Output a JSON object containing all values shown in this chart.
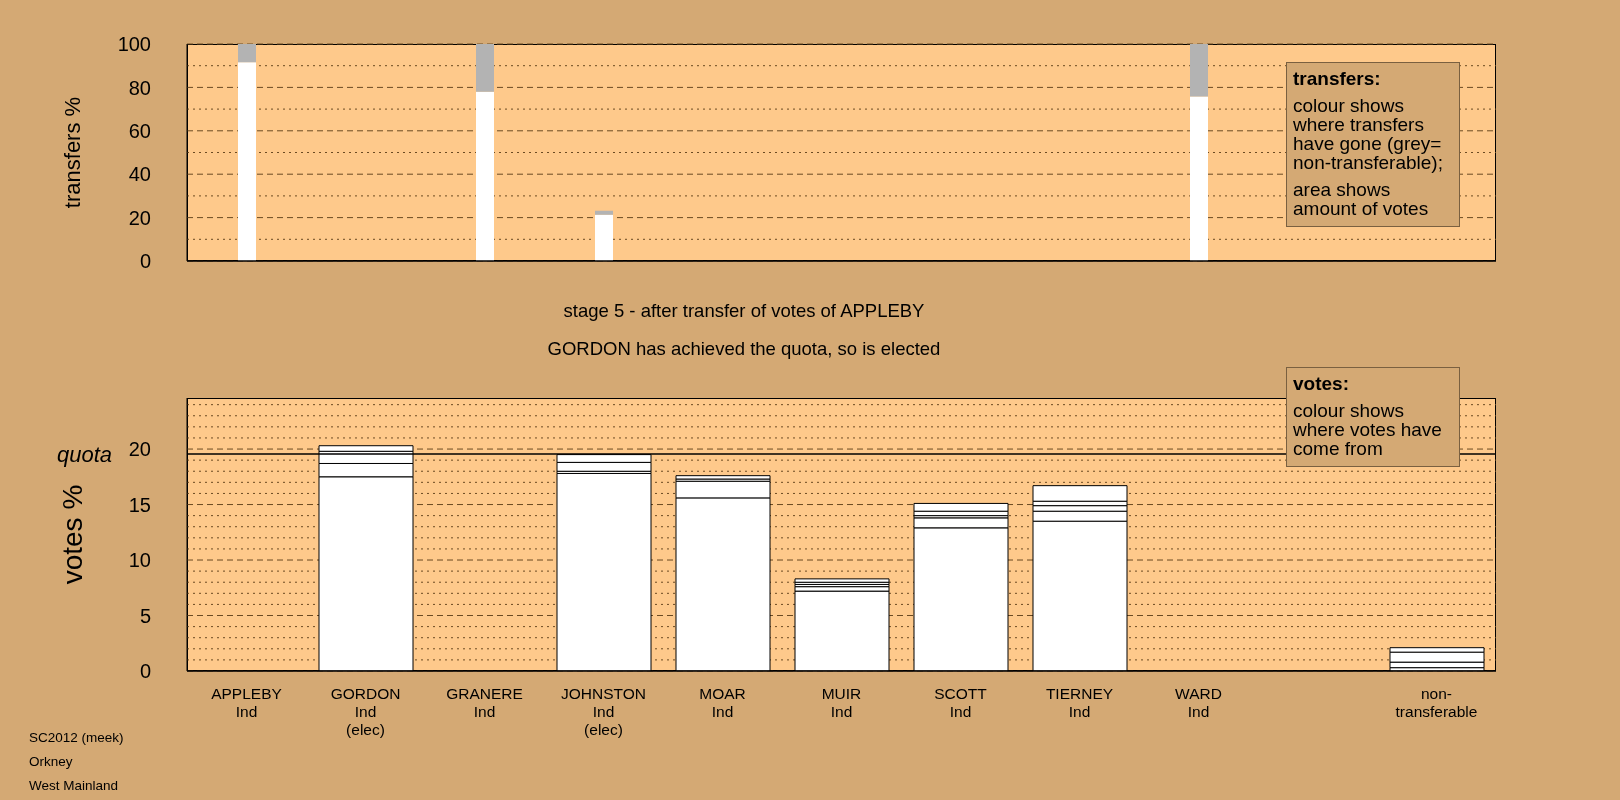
{
  "chart_data": [
    {
      "type": "bar",
      "stacked": true,
      "ylabel": "transfers %",
      "categories": [
        null,
        null,
        null,
        null,
        null,
        null,
        null,
        null,
        null,
        null,
        null
      ],
      "series": [
        {
          "color": "#ffffff",
          "values": [
            91.6,
            null,
            78,
            21.3,
            null,
            null,
            null,
            null,
            75.8,
            null,
            null
          ]
        },
        {
          "color": "#b3b3b3",
          "values": [
            8.4,
            null,
            22,
            1.9,
            null,
            null,
            null,
            null,
            24.2,
            null,
            null
          ]
        }
      ],
      "ylim": [
        0,
        100
      ],
      "yticks": [
        0,
        {
          "value": 10,
          "label": null
        },
        20,
        {
          "value": 30,
          "label": null
        },
        40,
        {
          "value": 50,
          "label": null
        },
        60,
        {
          "value": 70,
          "label": null
        },
        80,
        {
          "value": 90,
          "label": null
        },
        100
      ],
      "grid": "y",
      "tick_labels": "y",
      "annotations": [
        "transfers:",
        "colour shows where transfers have gone (grey= non-transferable);",
        "area shows amount of votes"
      ]
    },
    {
      "type": "bar",
      "stacked": true,
      "title": "stage 5 - after transfer of votes of APPLEBY",
      "subtitle": "GORDON has achieved the quota, so is elected",
      "ylabel": "votes %",
      "categories": [
        "APPLEBY\nInd",
        "GORDON\nInd\n(elec)",
        "GRANERE\nInd",
        "JOHNSTON\nInd\n(elec)",
        "MOAR\nInd",
        "MUIR\nInd",
        "SCOTT\nInd",
        "TIERNEY\nInd",
        "WARD\nInd",
        null,
        "non-\ntransferable"
      ],
      "series": [
        {
          "color": "#ffffff",
          "values": [
            0,
            17.5,
            0,
            17.8,
            15.6,
            7.2,
            12.9,
            13.5,
            0,
            null,
            0.3
          ]
        },
        {
          "color": "#ffffff",
          "values": [
            null,
            1.2,
            null,
            0.2,
            1.5,
            0.4,
            0.9,
            0.9,
            null,
            null,
            0.5
          ]
        },
        {
          "color": "#ffffff",
          "values": [
            null,
            1.1,
            null,
            0.8,
            0.2,
            0.2,
            0.2,
            0.5,
            null,
            null,
            0.9
          ]
        },
        {
          "color": "#ffffff",
          "values": [
            null,
            0.5,
            null,
            0.7,
            0.3,
            0.2,
            0.4,
            0.4,
            null,
            null,
            0.4
          ]
        },
        {
          "color": "#ffffff",
          "values": [
            null,
            null,
            null,
            null,
            null,
            0.3,
            0.7,
            1.4,
            null,
            null,
            null
          ]
        }
      ],
      "ylim": [
        0,
        24.6
      ],
      "yticks": [
        0,
        {
          "value": 1,
          "label": null
        },
        {
          "value": 2,
          "label": null
        },
        {
          "value": 3,
          "label": null
        },
        {
          "value": 4,
          "label": null
        },
        5,
        {
          "value": 6,
          "label": null
        },
        {
          "value": 7,
          "label": null
        },
        {
          "value": 8,
          "label": null
        },
        {
          "value": 9,
          "label": null
        },
        10,
        {
          "value": 11,
          "label": null
        },
        {
          "value": 12,
          "label": null
        },
        {
          "value": 13,
          "label": null
        },
        {
          "value": 14,
          "label": null
        },
        15,
        {
          "value": 16,
          "label": null
        },
        {
          "value": 17,
          "label": null
        },
        {
          "value": 18,
          "label": null
        },
        {
          "value": 19,
          "label": null
        },
        20,
        {
          "value": 21,
          "label": null
        },
        {
          "value": 22,
          "label": null
        },
        {
          "value": 23,
          "label": null
        },
        {
          "value": 24,
          "label": null
        }
      ],
      "grid": "y",
      "ref_lines": [
        {
          "axis": "y",
          "value": 19.55,
          "label": "quota",
          "color": "#000000"
        }
      ],
      "annotations": [
        "votes:",
        "colour shows where votes have come from"
      ]
    },
    {
      "type": "other",
      "annotations": [
        "SC2012 (meek)",
        "Orkney",
        "West Mainland"
      ]
    }
  ]
}
